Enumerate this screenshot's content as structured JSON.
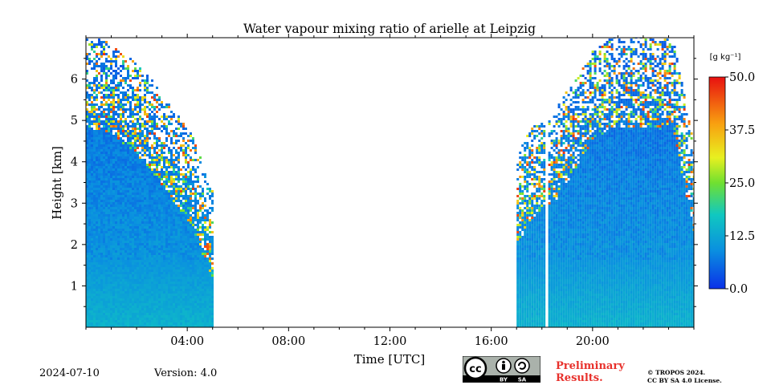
{
  "chart_data": {
    "type": "heatmap",
    "title": "Water vapour mixing ratio of arielle at Leipzig",
    "xlabel": "Time [UTC]",
    "ylabel": "Height [km]",
    "xlim": [
      0,
      24
    ],
    "ylim": [
      0,
      7
    ],
    "x_ticks": [
      {
        "value": 4,
        "label": "04:00"
      },
      {
        "value": 8,
        "label": "08:00"
      },
      {
        "value": 12,
        "label": "12:00"
      },
      {
        "value": 16,
        "label": "16:00"
      },
      {
        "value": 20,
        "label": "20:00"
      }
    ],
    "y_ticks": [
      {
        "value": 1,
        "label": "1"
      },
      {
        "value": 2,
        "label": "2"
      },
      {
        "value": 3,
        "label": "3"
      },
      {
        "value": 4,
        "label": "4"
      },
      {
        "value": 5,
        "label": "5"
      },
      {
        "value": 6,
        "label": "6"
      }
    ],
    "colorbar": {
      "unit_label": "[g kg⁻¹]",
      "range": [
        0,
        50
      ],
      "ticks": [
        {
          "value": 0,
          "label": "0.0"
        },
        {
          "value": 12.5,
          "label": "12.5"
        },
        {
          "value": 25,
          "label": "25.0"
        },
        {
          "value": 37.5,
          "label": "37.5"
        },
        {
          "value": 50,
          "label": "50.0"
        }
      ],
      "colormap": "jet"
    },
    "data_segments": [
      {
        "x_start": 0.0,
        "x_end": 5.0,
        "y_max_km": [
          7.0,
          6.9,
          6.5,
          6.0,
          5.3,
          4.6,
          3.2
        ]
      },
      {
        "x_start": 17.0,
        "x_end": 18.1,
        "y_max_km": [
          4.2,
          4.8,
          5.0
        ]
      },
      {
        "x_start": 18.25,
        "x_end": 24.0,
        "y_max_km": [
          5.0,
          5.8,
          6.6,
          7.0,
          7.0,
          7.0,
          6.9,
          4.2
        ]
      }
    ]
  },
  "footer": {
    "date": "2024-07-10",
    "version": "Version: 4.0",
    "preliminary_line1": "Preliminary",
    "preliminary_line2": "Results.",
    "copyright_line1": "© TROPOS 2024.",
    "copyright_line2": "CC BY SA 4.0 License.",
    "cc_by": "BY",
    "cc_sa": "SA",
    "cc_mark": "cc"
  },
  "colors": {
    "low": "#0a3fd6",
    "mid": "#18a0c8",
    "high": "#e01010"
  }
}
